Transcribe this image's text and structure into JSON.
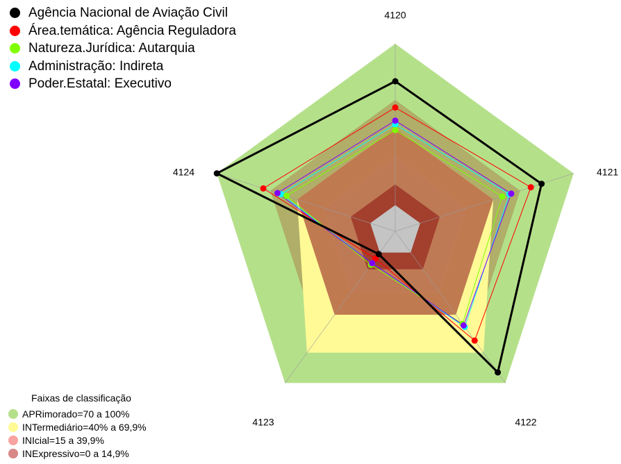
{
  "chart_data": {
    "type": "radar",
    "title": "",
    "axes": [
      "4120",
      "4121",
      "4122",
      "4123",
      "4124"
    ],
    "range": [
      0,
      100
    ],
    "series": [
      {
        "name": "Agência Nacional de Aviação Civil",
        "values": [
          80,
          82,
          93,
          15,
          100
        ],
        "color": "#000000"
      },
      {
        "name": "Área.temática: Agência Reguladora",
        "values": [
          66,
          76,
          72,
          18,
          74
        ],
        "color": "#ff0000"
      },
      {
        "name": "Natureza.Jurídica: Autarquia",
        "values": [
          54,
          60,
          61,
          22,
          61
        ],
        "color": "#80ff00"
      },
      {
        "name": "Administração: Indireta",
        "values": [
          57,
          64,
          63,
          21,
          64
        ],
        "color": "#00ffff"
      },
      {
        "name": "Poder.Estatal: Executivo",
        "values": [
          59,
          65,
          62,
          21,
          66
        ],
        "color": "#8000ff"
      }
    ],
    "band_legend": {
      "title": "Faixas de classificação",
      "items": [
        {
          "label": "APRimorado=70 a 100%",
          "color": "#b5e08a"
        },
        {
          "label": "INTermediário=40% a 69,9%",
          "color": "#fffa96"
        },
        {
          "label": "INIcial=15 a 39,9%",
          "color": "#f7a3a0"
        },
        {
          "label": "INExpressivo=0 a 14,9%",
          "color": "#d98787"
        }
      ]
    },
    "background_fills": [
      {
        "band": "APRimorado",
        "values": [
          100,
          100,
          100,
          100,
          100
        ],
        "color": "#b5e08a"
      },
      {
        "band": "APRimorado",
        "values": [
          70,
          70,
          70,
          70,
          70
        ],
        "color": "#85a86a"
      },
      {
        "band": "INTermediário",
        "values": [
          70,
          70,
          70,
          70,
          70
        ],
        "color": "#b0ae68"
      },
      {
        "band": "INTermediário",
        "values": [
          55,
          55,
          80,
          80,
          55
        ],
        "color": "#fffa96"
      },
      {
        "band": "INIcial",
        "values": [
          55,
          55,
          55,
          55,
          55
        ],
        "color": "#c07a50"
      },
      {
        "band": "INIcial",
        "values": [
          40,
          40,
          40,
          40,
          40
        ],
        "color": "#f79f78"
      },
      {
        "band": "INExpressivo",
        "values": [
          40,
          40,
          40,
          40,
          40
        ],
        "color": "#be7a55"
      },
      {
        "band": "INExpressivo",
        "values": [
          25,
          25,
          25,
          25,
          25
        ],
        "color": "#a23f2d"
      },
      {
        "band": "center",
        "values": [
          14,
          14,
          14,
          14,
          14
        ],
        "color": "#c4c4c4"
      }
    ]
  }
}
